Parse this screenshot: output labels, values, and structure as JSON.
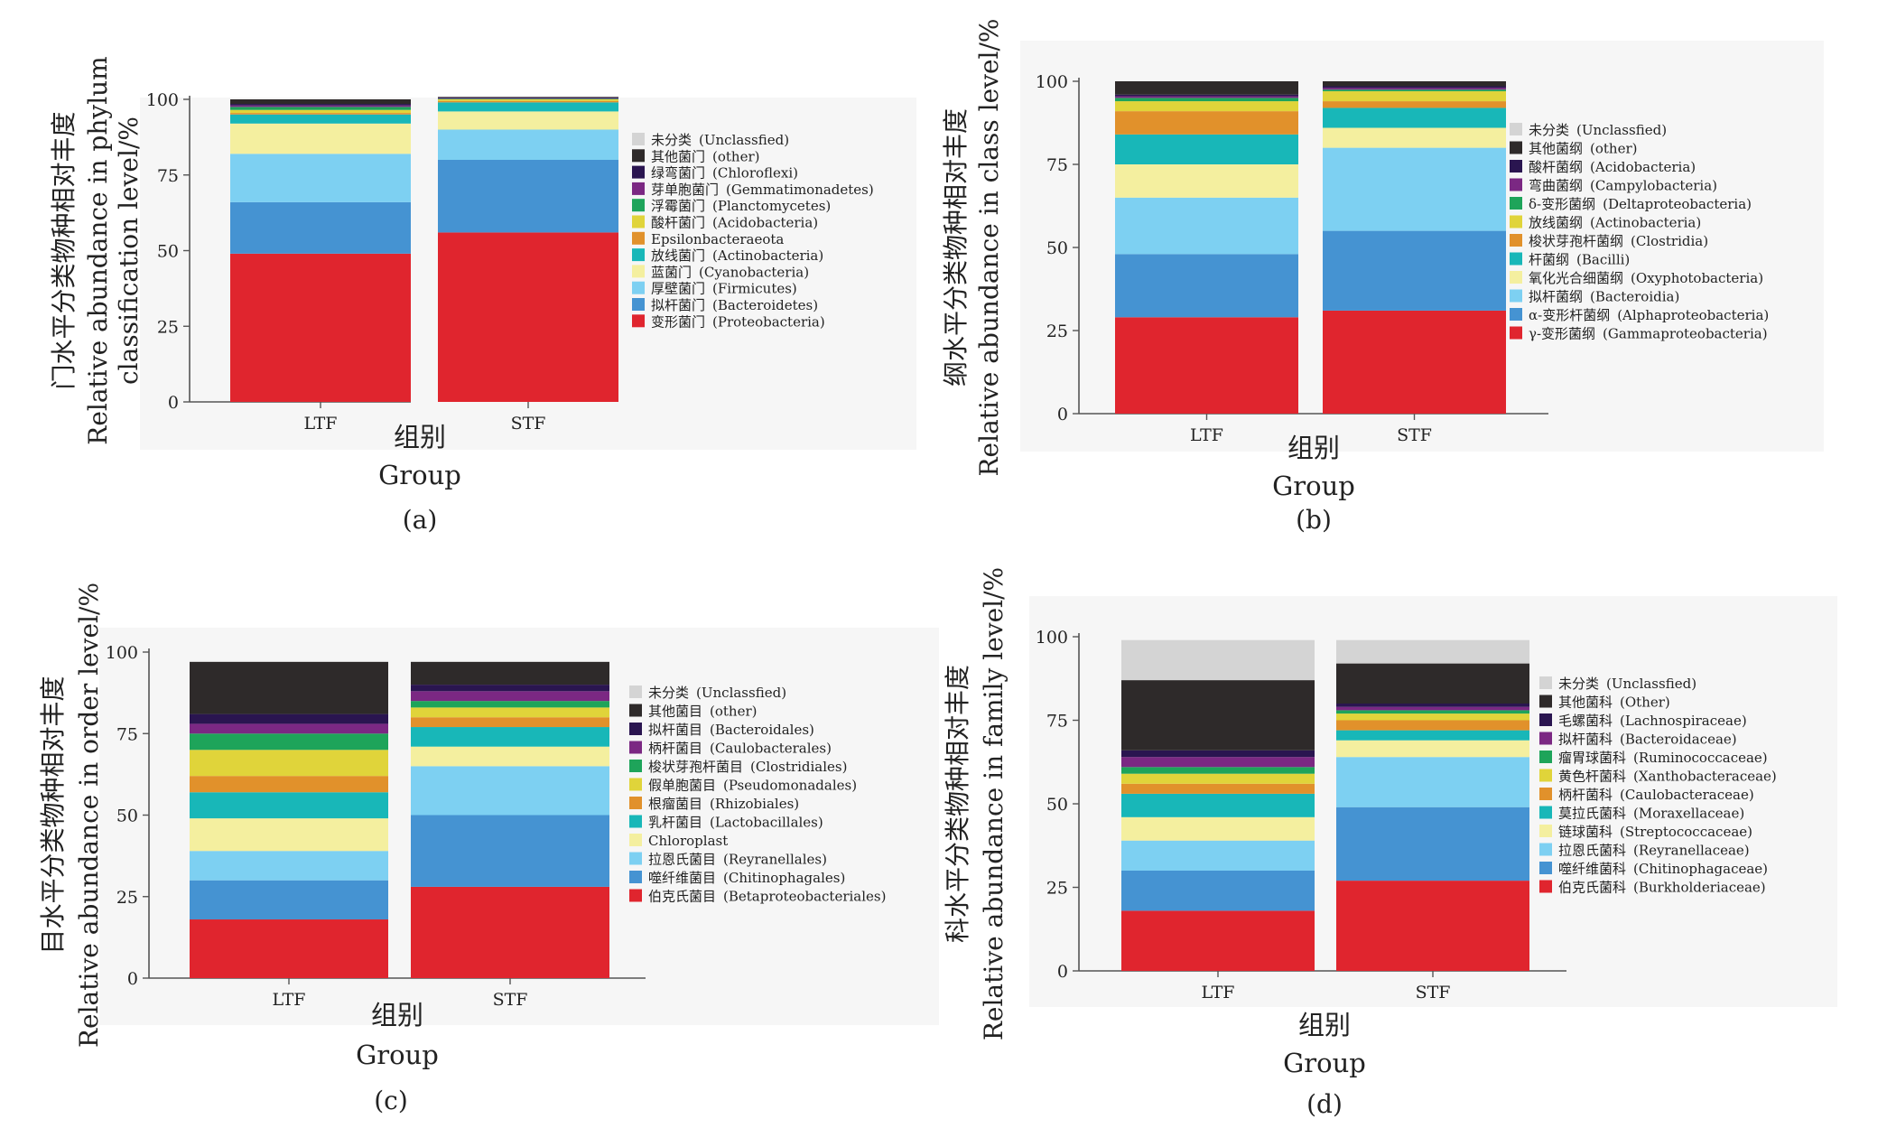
{
  "colors": {
    "Unclassified": "#d4d4d4",
    "other": "#2e2a2a",
    "c_navy": "#2a1550",
    "c_purple": "#7b2883",
    "c_green": "#1ea45a",
    "c_yellow": "#e0d43a",
    "c_orange": "#e1912b",
    "c_teal": "#18b7b8",
    "c_lightyellow": "#f4ef9f",
    "c_lightblue": "#7dd0f2",
    "c_blue": "#4593d2",
    "c_red": "#e0252e",
    "axis": "#555555",
    "panel_bg": "#f6f6f6"
  },
  "chart_data": [
    {
      "type": "bar",
      "stacked": true,
      "panel_label": "(a)",
      "ylabel_cn": "门水平分类物种相对丰度",
      "ylabel_en": "Relative abundance in phylum",
      "ylabel_en2": "classification level/%",
      "xlabel_cn": "组别",
      "xlabel_en": "Group",
      "categories": [
        "LTF",
        "STF"
      ],
      "ylim": [
        0,
        100
      ],
      "yticks": [
        "0",
        "25",
        "50",
        "75",
        "100"
      ],
      "series": [
        {
          "cn": "变形菌门",
          "en": "(Proteobacteria)",
          "color": "c_red",
          "values": [
            49,
            56
          ]
        },
        {
          "cn": "拟杆菌门",
          "en": "(Bacteroidetes)",
          "color": "c_blue",
          "values": [
            17,
            24
          ]
        },
        {
          "cn": "厚壁菌门",
          "en": "(Firmicutes)",
          "color": "c_lightblue",
          "values": [
            16,
            10
          ]
        },
        {
          "cn": "蓝菌门",
          "en": "(Cyanobacteria)",
          "color": "c_lightyellow",
          "values": [
            10,
            6
          ]
        },
        {
          "cn": "放线菌门",
          "en": "(Actinobacteria)",
          "color": "c_teal",
          "values": [
            3,
            3
          ]
        },
        {
          "cn": "",
          "en": "Epsilonbacteraeota",
          "color": "c_orange",
          "values": [
            0.5,
            0.5
          ]
        },
        {
          "cn": "酸杆菌门",
          "en": "(Acidobacteria)",
          "color": "c_yellow",
          "values": [
            1,
            0.5
          ]
        },
        {
          "cn": "浮霉菌门",
          "en": "(Planctomycetes)",
          "color": "c_green",
          "values": [
            1,
            0.2
          ]
        },
        {
          "cn": "芽单胞菌门",
          "en": "(Gemmatimonadetes)",
          "color": "c_purple",
          "values": [
            0.5,
            0.2
          ]
        },
        {
          "cn": "绿弯菌门",
          "en": "(Chloroflexi)",
          "color": "c_navy",
          "values": [
            0.5,
            0.2
          ]
        },
        {
          "cn": "其他菌门",
          "en": "(other)",
          "color": "other",
          "values": [
            1.5,
            0.2
          ]
        },
        {
          "cn": "未分类",
          "en": "(Unclassfied)",
          "color": "Unclassified",
          "values": [
            0,
            0
          ]
        }
      ]
    },
    {
      "type": "bar",
      "stacked": true,
      "panel_label": "(b)",
      "ylabel_cn": "纲水平分类物种相对丰度",
      "ylabel_en": "Relative abundance in class level/%",
      "xlabel_cn": "组别",
      "xlabel_en": "Group",
      "categories": [
        "LTF",
        "STF"
      ],
      "ylim": [
        0,
        100
      ],
      "yticks": [
        "0",
        "25",
        "50",
        "75",
        "100"
      ],
      "series": [
        {
          "cn": "γ-变形菌纲",
          "en": "(Gammaproteobacteria)",
          "color": "c_red",
          "values": [
            29,
            31
          ]
        },
        {
          "cn": "α-变形杆菌纲",
          "en": "(Alphaproteobacteria)",
          "color": "c_blue",
          "values": [
            19,
            24
          ]
        },
        {
          "cn": "拟杆菌纲",
          "en": "(Bacteroidia)",
          "color": "c_lightblue",
          "values": [
            17,
            25
          ]
        },
        {
          "cn": "氧化光合细菌纲",
          "en": "(Oxyphotobacteria)",
          "color": "c_lightyellow",
          "values": [
            10,
            6
          ]
        },
        {
          "cn": "杆菌纲",
          "en": "(Bacilli)",
          "color": "c_teal",
          "values": [
            9,
            6
          ]
        },
        {
          "cn": "梭状芽孢杆菌纲",
          "en": "(Clostridia)",
          "color": "c_orange",
          "values": [
            7,
            2
          ]
        },
        {
          "cn": "放线菌纲",
          "en": "(Actinobacteria)",
          "color": "c_yellow",
          "values": [
            3,
            3
          ]
        },
        {
          "cn": "δ-变形菌纲",
          "en": "(Deltaproteobacteria)",
          "color": "c_green",
          "values": [
            1,
            0.5
          ]
        },
        {
          "cn": "弯曲菌纲",
          "en": "(Campylobacteria)",
          "color": "c_purple",
          "values": [
            0.5,
            0.5
          ]
        },
        {
          "cn": "酸杆菌纲",
          "en": "(Acidobacteria)",
          "color": "c_navy",
          "values": [
            0.5,
            0.5
          ]
        },
        {
          "cn": "其他菌纲",
          "en": "(other)",
          "color": "other",
          "values": [
            4,
            1.5
          ]
        },
        {
          "cn": "未分类",
          "en": "(Unclassfied)",
          "color": "Unclassified",
          "values": [
            0,
            0
          ]
        }
      ]
    },
    {
      "type": "bar",
      "stacked": true,
      "panel_label": "(c)",
      "ylabel_cn": "目水平分类物种相对丰度",
      "ylabel_en": "Relative abundance in order level/%",
      "xlabel_cn": "组别",
      "xlabel_en": "Group",
      "categories": [
        "LTF",
        "STF"
      ],
      "ylim": [
        0,
        100
      ],
      "yticks": [
        "0",
        "25",
        "50",
        "75",
        "100"
      ],
      "series": [
        {
          "cn": "伯克氏菌目",
          "en": "(Betaproteobacteriales)",
          "color": "c_red",
          "values": [
            18,
            28
          ]
        },
        {
          "cn": "噬纤维菌目",
          "en": "(Chitinophagales)",
          "color": "c_blue",
          "values": [
            12,
            22
          ]
        },
        {
          "cn": "拉恩氏菌目",
          "en": "(Reyranellales)",
          "color": "c_lightblue",
          "values": [
            9,
            15
          ]
        },
        {
          "cn": "",
          "en": "Chloroplast",
          "color": "c_lightyellow",
          "values": [
            10,
            6
          ]
        },
        {
          "cn": "乳杆菌目",
          "en": "(Lactobacillales)",
          "color": "c_teal",
          "values": [
            8,
            6
          ]
        },
        {
          "cn": "根瘤菌目",
          "en": "(Rhizobiales)",
          "color": "c_orange",
          "values": [
            5,
            3
          ]
        },
        {
          "cn": "假单胞菌目",
          "en": "(Pseudomonadales)",
          "color": "c_yellow",
          "values": [
            8,
            3
          ]
        },
        {
          "cn": "梭状芽孢杆菌目",
          "en": "(Clostridiales)",
          "color": "c_green",
          "values": [
            5,
            2
          ]
        },
        {
          "cn": "柄杆菌目",
          "en": "(Caulobacterales)",
          "color": "c_purple",
          "values": [
            3,
            3
          ]
        },
        {
          "cn": "拟杆菌目",
          "en": "(Bacteroidales)",
          "color": "c_navy",
          "values": [
            3,
            2
          ]
        },
        {
          "cn": "其他菌目",
          "en": "(other)",
          "color": "other",
          "values": [
            16,
            7
          ]
        },
        {
          "cn": "未分类",
          "en": "(Unclassfied)",
          "color": "Unclassified",
          "values": [
            0,
            0
          ]
        }
      ]
    },
    {
      "type": "bar",
      "stacked": true,
      "panel_label": "(d)",
      "ylabel_cn": "科水平分类物种相对丰度",
      "ylabel_en": "Relative abundance in family level/%",
      "xlabel_cn": "组别",
      "xlabel_en": "Group",
      "categories": [
        "LTF",
        "STF"
      ],
      "ylim": [
        0,
        100
      ],
      "yticks": [
        "0",
        "25",
        "50",
        "75",
        "100"
      ],
      "series": [
        {
          "cn": "伯克氏菌科",
          "en": "(Burkholderiaceae)",
          "color": "c_red",
          "values": [
            18,
            27
          ]
        },
        {
          "cn": "噬纤维菌科",
          "en": "(Chitinophagaceae)",
          "color": "c_blue",
          "values": [
            12,
            22
          ]
        },
        {
          "cn": "拉恩氏菌科",
          "en": "(Reyranellaceae)",
          "color": "c_lightblue",
          "values": [
            9,
            15
          ]
        },
        {
          "cn": "链球菌科",
          "en": "(Streptococcaceae)",
          "color": "c_lightyellow",
          "values": [
            7,
            5
          ]
        },
        {
          "cn": "莫拉氏菌科",
          "en": "(Moraxellaceae)",
          "color": "c_teal",
          "values": [
            7,
            3
          ]
        },
        {
          "cn": "柄杆菌科",
          "en": "(Caulobacteraceae)",
          "color": "c_orange",
          "values": [
            3,
            3
          ]
        },
        {
          "cn": "黄色杆菌科",
          "en": "(Xanthobacteraceae)",
          "color": "c_yellow",
          "values": [
            3,
            2
          ]
        },
        {
          "cn": "瘤胃球菌科",
          "en": "(Ruminococcaceae)",
          "color": "c_green",
          "values": [
            2,
            1
          ]
        },
        {
          "cn": "拟杆菌科",
          "en": "(Bacteroidaceae)",
          "color": "c_purple",
          "values": [
            3,
            1
          ]
        },
        {
          "cn": "毛螺菌科",
          "en": "(Lachnospiraceae)",
          "color": "c_navy",
          "values": [
            2,
            1
          ]
        },
        {
          "cn": "其他菌科",
          "en": "(Other)",
          "color": "other",
          "values": [
            21,
            12
          ]
        },
        {
          "cn": "未分类",
          "en": "(Unclassfied)",
          "color": "Unclassified",
          "values": [
            12,
            7
          ]
        }
      ]
    }
  ]
}
